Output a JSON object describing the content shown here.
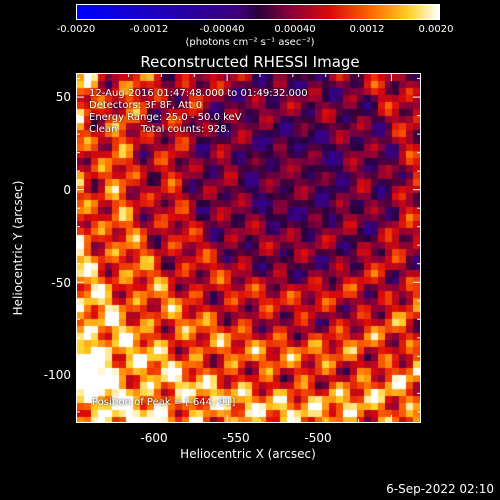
{
  "colorbar": {
    "ticks": [
      "-0.0020",
      "-0.0012",
      "-0.00040",
      "0.00040",
      "0.0012",
      "0.0020"
    ],
    "label": "(photons cm⁻² s⁻¹ asec⁻²)"
  },
  "chart_data": {
    "type": "heatmap",
    "title": "Reconstructed RHESSI Image",
    "xlabel": "Heliocentric X (arcsec)",
    "ylabel": "Heliocentric Y (arcsec)",
    "xlim": [
      -646,
      -541
    ],
    "ylim": [
      -126,
      63
    ],
    "x_ticks": [
      "-600",
      "-550",
      "-500"
    ],
    "y_ticks": [
      "50",
      "0",
      "-50",
      "-100"
    ],
    "color_range": [
      -0.002,
      0.002
    ],
    "peak_position": [
      -644,
      -91
    ],
    "annotations": {
      "time_range": "12-Aug-2016 01:47:48.000 to 01:49:32.000",
      "detectors": "Detectors: 3F 8F, Att 0",
      "energy_range": "Energy Range: 25.0 - 50.0 keV",
      "method": "Clean",
      "total_counts": "Total counts: 928.",
      "peak_label": "Position of Peak = [-644,-91]"
    }
  },
  "footer": {
    "date_stamp": "6-Sep-2022 02:10"
  }
}
